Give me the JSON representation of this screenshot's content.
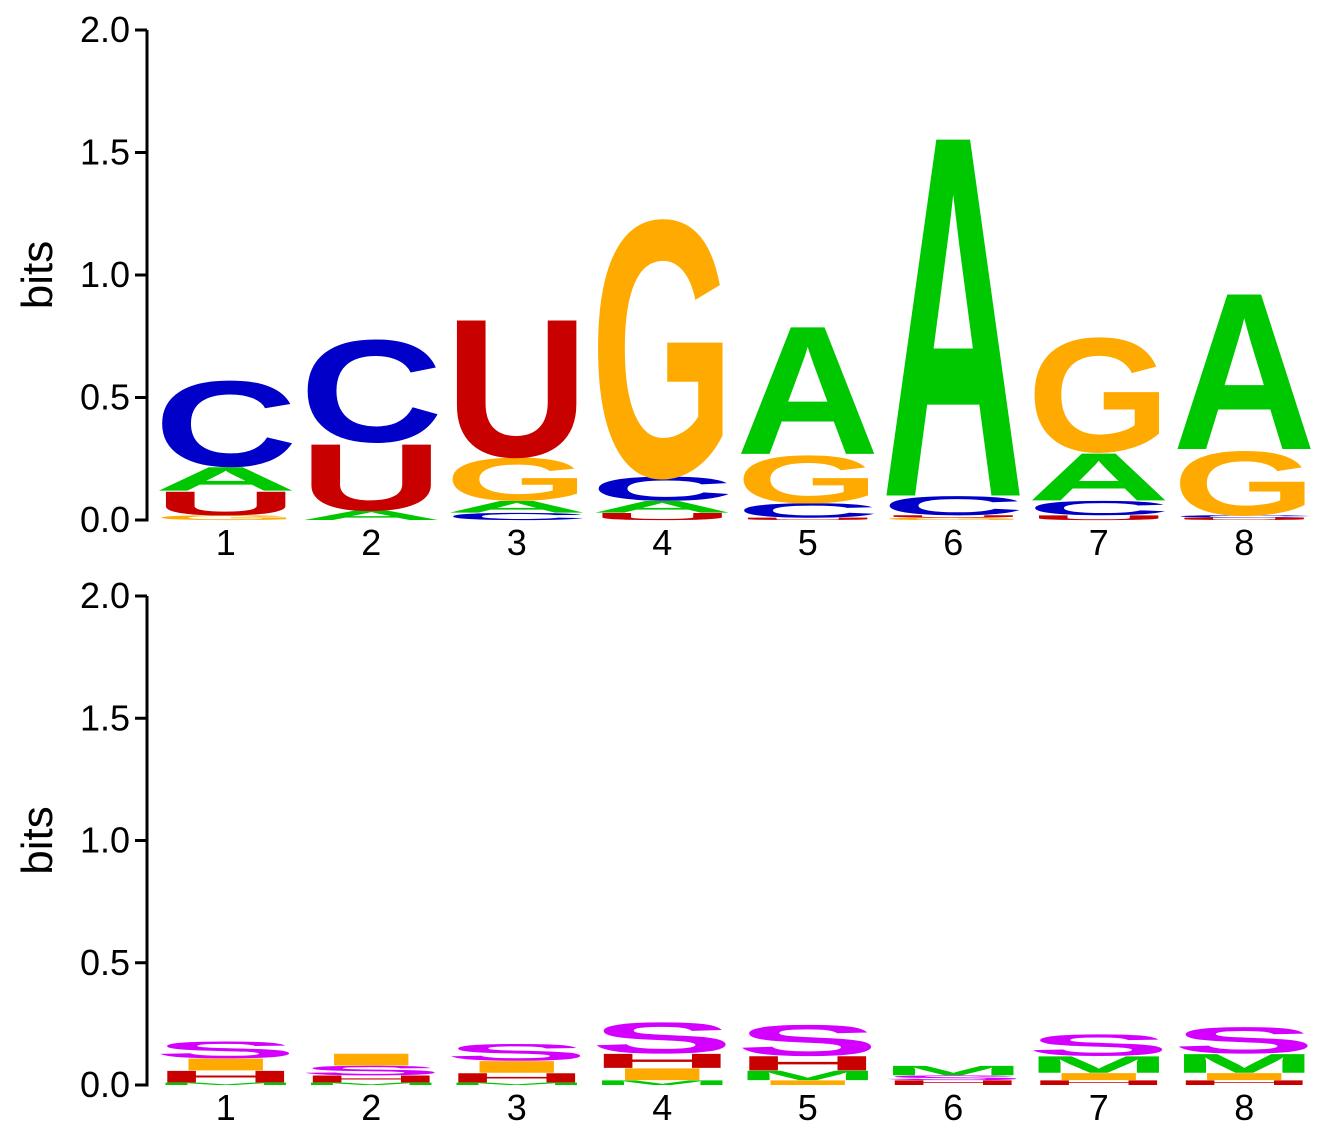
{
  "colors": {
    "A": "#00c800",
    "C": "#0000c8",
    "G": "#ffaa00",
    "U": "#c80000",
    "S": "#d400ff",
    "M": "#00c800",
    "I": "#ffaa00",
    "H": "#c80000",
    "B": "#0000c8",
    "E": "#c80000"
  },
  "chart_data": [
    {
      "type": "sequence-logo",
      "ylabel": "bits",
      "ylim": [
        0,
        2
      ],
      "yticks": [
        "0.0",
        "0.5",
        "1.0",
        "1.5",
        "2.0"
      ],
      "positions": [
        "1",
        "2",
        "3",
        "4",
        "5",
        "6",
        "7",
        "8"
      ],
      "stacks": [
        [
          {
            "letter": "G",
            "bits": 0.02
          },
          {
            "letter": "U",
            "bits": 0.1
          },
          {
            "letter": "A",
            "bits": 0.1
          },
          {
            "letter": "C",
            "bits": 0.36
          }
        ],
        [
          {
            "letter": "A",
            "bits": 0.04
          },
          {
            "letter": "U",
            "bits": 0.28
          },
          {
            "letter": "C",
            "bits": 0.43
          }
        ],
        [
          {
            "letter": "C",
            "bits": 0.03
          },
          {
            "letter": "A",
            "bits": 0.05
          },
          {
            "letter": "G",
            "bits": 0.18
          },
          {
            "letter": "U",
            "bits": 0.58
          }
        ],
        [
          {
            "letter": "U",
            "bits": 0.03
          },
          {
            "letter": "A",
            "bits": 0.05
          },
          {
            "letter": "C",
            "bits": 0.1
          },
          {
            "letter": "G",
            "bits": 1.08
          }
        ],
        [
          {
            "letter": "U",
            "bits": 0.01
          },
          {
            "letter": "C",
            "bits": 0.06
          },
          {
            "letter": "G",
            "bits": 0.2
          },
          {
            "letter": "A",
            "bits": 0.54
          }
        ],
        [
          {
            "letter": "G",
            "bits": 0.01
          },
          {
            "letter": "U",
            "bits": 0.01
          },
          {
            "letter": "C",
            "bits": 0.08
          },
          {
            "letter": "A",
            "bits": 1.52
          }
        ],
        [
          {
            "letter": "U",
            "bits": 0.02
          },
          {
            "letter": "C",
            "bits": 0.06
          },
          {
            "letter": "A",
            "bits": 0.2
          },
          {
            "letter": "G",
            "bits": 0.48
          }
        ],
        [
          {
            "letter": "U",
            "bits": 0.01
          },
          {
            "letter": "C",
            "bits": 0.01
          },
          {
            "letter": "G",
            "bits": 0.27
          },
          {
            "letter": "A",
            "bits": 0.66
          }
        ]
      ]
    },
    {
      "type": "sequence-logo",
      "ylabel": "bits",
      "ylim": [
        0,
        2
      ],
      "yticks": [
        "0.0",
        "0.5",
        "1.0",
        "1.5",
        "2.0"
      ],
      "positions": [
        "1",
        "2",
        "3",
        "4",
        "5",
        "6",
        "7",
        "8"
      ],
      "stacks": [
        [
          {
            "letter": "M",
            "bits": 0.01
          },
          {
            "letter": "H",
            "bits": 0.05
          },
          {
            "letter": "I",
            "bits": 0.05
          },
          {
            "letter": "S",
            "bits": 0.07
          }
        ],
        [
          {
            "letter": "M",
            "bits": 0.01
          },
          {
            "letter": "H",
            "bits": 0.03
          },
          {
            "letter": "S",
            "bits": 0.04
          },
          {
            "letter": "I",
            "bits": 0.05
          }
        ],
        [
          {
            "letter": "M",
            "bits": 0.01
          },
          {
            "letter": "H",
            "bits": 0.04
          },
          {
            "letter": "I",
            "bits": 0.05
          },
          {
            "letter": "S",
            "bits": 0.07
          }
        ],
        [
          {
            "letter": "M",
            "bits": 0.02
          },
          {
            "letter": "I",
            "bits": 0.05
          },
          {
            "letter": "H",
            "bits": 0.06
          },
          {
            "letter": "S",
            "bits": 0.13
          }
        ],
        [
          {
            "letter": "I",
            "bits": 0.02
          },
          {
            "letter": "M",
            "bits": 0.04
          },
          {
            "letter": "H",
            "bits": 0.06
          },
          {
            "letter": "S",
            "bits": 0.13
          }
        ],
        [
          {
            "letter": "H",
            "bits": 0.02
          },
          {
            "letter": "S",
            "bits": 0.02
          },
          {
            "letter": "M",
            "bits": 0.04
          }
        ],
        [
          {
            "letter": "H",
            "bits": 0.02
          },
          {
            "letter": "I",
            "bits": 0.03
          },
          {
            "letter": "M",
            "bits": 0.07
          },
          {
            "letter": "S",
            "bits": 0.09
          }
        ],
        [
          {
            "letter": "H",
            "bits": 0.02
          },
          {
            "letter": "I",
            "bits": 0.03
          },
          {
            "letter": "M",
            "bits": 0.08
          },
          {
            "letter": "S",
            "bits": 0.11
          }
        ]
      ]
    }
  ]
}
